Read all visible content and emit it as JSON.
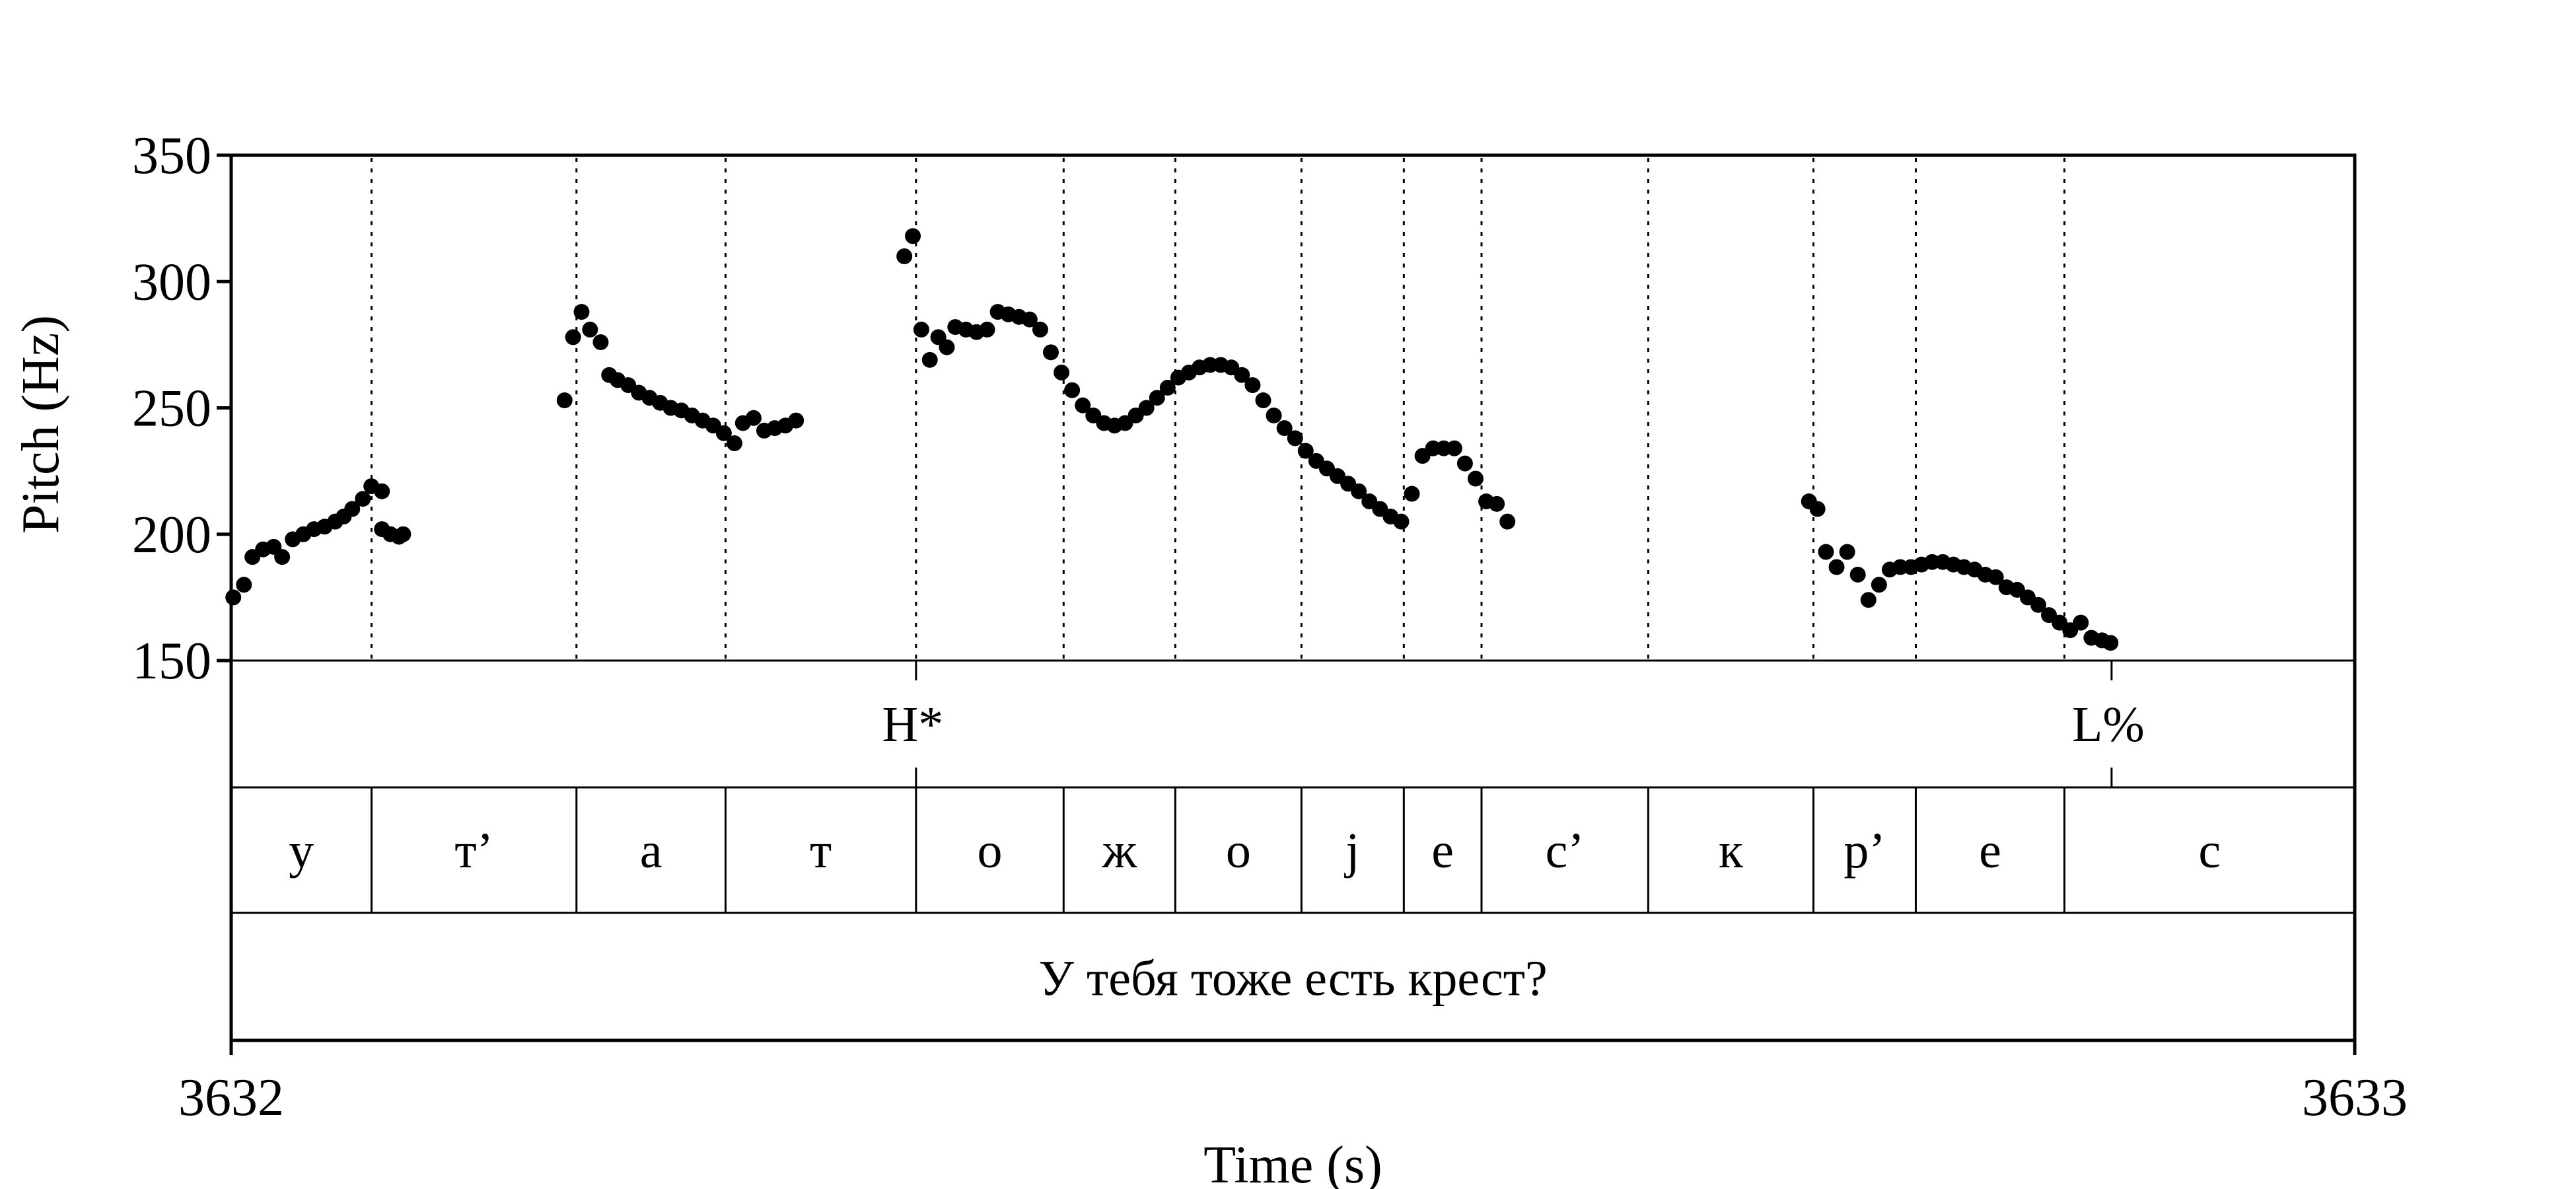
{
  "chart_data": {
    "type": "scatter",
    "xlabel": "Time (s)",
    "ylabel": "Pitch (Hz)",
    "xlim": [
      3632,
      3633
    ],
    "ylim": [
      150,
      350
    ],
    "x_ticks": [
      "3632",
      "3633"
    ],
    "y_ticks": [
      150,
      200,
      250,
      300,
      350
    ],
    "grid": false,
    "legend": "none",
    "pitch_points": [
      [
        3632.001,
        175
      ],
      [
        3632.006,
        180
      ],
      [
        3632.01,
        191
      ],
      [
        3632.015,
        194
      ],
      [
        3632.02,
        195
      ],
      [
        3632.024,
        191
      ],
      [
        3632.029,
        198
      ],
      [
        3632.034,
        200
      ],
      [
        3632.039,
        202
      ],
      [
        3632.044,
        203
      ],
      [
        3632.049,
        205
      ],
      [
        3632.053,
        207
      ],
      [
        3632.057,
        210
      ],
      [
        3632.062,
        214
      ],
      [
        3632.066,
        219
      ],
      [
        3632.071,
        217
      ],
      [
        3632.071,
        202
      ],
      [
        3632.075,
        200
      ],
      [
        3632.079,
        199
      ],
      [
        3632.081,
        200
      ],
      [
        3632.157,
        253
      ],
      [
        3632.161,
        278
      ],
      [
        3632.165,
        288
      ],
      [
        3632.169,
        281
      ],
      [
        3632.174,
        276
      ],
      [
        3632.178,
        263
      ],
      [
        3632.182,
        261
      ],
      [
        3632.187,
        259
      ],
      [
        3632.192,
        256
      ],
      [
        3632.197,
        254
      ],
      [
        3632.202,
        252
      ],
      [
        3632.207,
        250
      ],
      [
        3632.212,
        249
      ],
      [
        3632.217,
        247
      ],
      [
        3632.222,
        245
      ],
      [
        3632.227,
        243
      ],
      [
        3632.232,
        240
      ],
      [
        3632.237,
        236
      ],
      [
        3632.241,
        244
      ],
      [
        3632.246,
        246
      ],
      [
        3632.251,
        241
      ],
      [
        3632.256,
        242
      ],
      [
        3632.261,
        243
      ],
      [
        3632.266,
        245
      ],
      [
        3632.317,
        310
      ],
      [
        3632.321,
        318
      ],
      [
        3632.325,
        281
      ],
      [
        3632.329,
        269
      ],
      [
        3632.333,
        278
      ],
      [
        3632.337,
        274
      ],
      [
        3632.341,
        282
      ],
      [
        3632.346,
        281
      ],
      [
        3632.351,
        280
      ],
      [
        3632.356,
        281
      ],
      [
        3632.361,
        288
      ],
      [
        3632.366,
        287
      ],
      [
        3632.371,
        286
      ],
      [
        3632.376,
        285
      ],
      [
        3632.381,
        281
      ],
      [
        3632.386,
        272
      ],
      [
        3632.391,
        264
      ],
      [
        3632.396,
        257
      ],
      [
        3632.401,
        251
      ],
      [
        3632.406,
        247
      ],
      [
        3632.411,
        244
      ],
      [
        3632.416,
        243
      ],
      [
        3632.421,
        244
      ],
      [
        3632.426,
        247
      ],
      [
        3632.431,
        250
      ],
      [
        3632.436,
        254
      ],
      [
        3632.441,
        258
      ],
      [
        3632.446,
        262
      ],
      [
        3632.451,
        264
      ],
      [
        3632.456,
        266
      ],
      [
        3632.461,
        267
      ],
      [
        3632.466,
        267
      ],
      [
        3632.471,
        266
      ],
      [
        3632.476,
        263
      ],
      [
        3632.481,
        259
      ],
      [
        3632.486,
        253
      ],
      [
        3632.491,
        247
      ],
      [
        3632.496,
        242
      ],
      [
        3632.501,
        238
      ],
      [
        3632.506,
        233
      ],
      [
        3632.511,
        229
      ],
      [
        3632.516,
        226
      ],
      [
        3632.521,
        223
      ],
      [
        3632.526,
        220
      ],
      [
        3632.531,
        217
      ],
      [
        3632.536,
        213
      ],
      [
        3632.541,
        210
      ],
      [
        3632.546,
        207
      ],
      [
        3632.551,
        205
      ],
      [
        3632.556,
        216
      ],
      [
        3632.561,
        231
      ],
      [
        3632.566,
        234
      ],
      [
        3632.571,
        234
      ],
      [
        3632.576,
        234
      ],
      [
        3632.581,
        228
      ],
      [
        3632.586,
        222
      ],
      [
        3632.591,
        213
      ],
      [
        3632.596,
        212
      ],
      [
        3632.601,
        205
      ],
      [
        3632.743,
        213
      ],
      [
        3632.747,
        210
      ],
      [
        3632.751,
        193
      ],
      [
        3632.756,
        187
      ],
      [
        3632.761,
        193
      ],
      [
        3632.766,
        184
      ],
      [
        3632.771,
        174
      ],
      [
        3632.776,
        180
      ],
      [
        3632.781,
        186
      ],
      [
        3632.786,
        187
      ],
      [
        3632.791,
        187
      ],
      [
        3632.796,
        188
      ],
      [
        3632.801,
        189
      ],
      [
        3632.806,
        189
      ],
      [
        3632.811,
        188
      ],
      [
        3632.816,
        187
      ],
      [
        3632.821,
        186
      ],
      [
        3632.826,
        184
      ],
      [
        3632.831,
        183
      ],
      [
        3632.836,
        179
      ],
      [
        3632.841,
        178
      ],
      [
        3632.846,
        175
      ],
      [
        3632.851,
        172
      ],
      [
        3632.856,
        168
      ],
      [
        3632.861,
        165
      ],
      [
        3632.866,
        162
      ],
      [
        3632.871,
        165
      ],
      [
        3632.876,
        159
      ],
      [
        3632.881,
        158
      ],
      [
        3632.885,
        157
      ]
    ],
    "tones": [
      {
        "label": "H*",
        "time": 3632.3225
      },
      {
        "label": "L%",
        "time": 3632.8855
      }
    ],
    "phones": {
      "boundaries": [
        3632.0,
        3632.0661,
        3632.1626,
        3632.2328,
        3632.3225,
        3632.392,
        3632.4446,
        3632.504,
        3632.5522,
        3632.5888,
        3632.6673,
        3632.7451,
        3632.7933,
        3632.8633,
        3633.0
      ],
      "labels": [
        "у",
        "т’",
        "а",
        "т",
        "о",
        "ж",
        "о",
        "j",
        "е",
        "с’",
        "к",
        "р’",
        "е",
        "с"
      ]
    },
    "sentence": "У тебя тоже есть крест?"
  }
}
